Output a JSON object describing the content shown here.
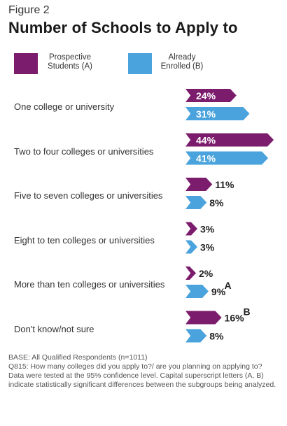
{
  "figure_label": "Figure 2",
  "title": "Number of Schools to Apply to",
  "legend": {
    "a": {
      "line1": "Prospective",
      "line2": "Students (A)",
      "color": "#7b1c6c"
    },
    "b": {
      "line1": "Already",
      "line2": "Enrolled (B)",
      "color": "#4aa3dc"
    }
  },
  "notes": [
    "BASE: All Qualified Respondents (n=1011)",
    "Q815: How many colleges did you apply to?/ are you planning on applying to?",
    "Data were tested at the 95% confidence level. Capital superscript letters (A, B) indicate statistically significant differences between the subgroups being analyzed."
  ],
  "chart_data": {
    "type": "bar",
    "orientation": "horizontal",
    "categories": [
      "One college or university",
      "Two to four colleges or universities",
      "Five to seven colleges or universities",
      "Eight to ten colleges or universities",
      "More than ten colleges or universities",
      "Don't know/not sure"
    ],
    "series": [
      {
        "name": "Prospective Students (A)",
        "color": "#7b1c6c",
        "values": [
          24,
          44,
          11,
          3,
          2,
          16
        ],
        "labels": [
          "24%",
          "44%",
          "11%",
          "3%",
          "2%",
          "16%"
        ],
        "sig": [
          "",
          "",
          "",
          "",
          "",
          "B"
        ]
      },
      {
        "name": "Already Enrolled (B)",
        "color": "#4aa3dc",
        "values": [
          31,
          41,
          8,
          3,
          9,
          8
        ],
        "labels": [
          "31%",
          "41%",
          "8%",
          "3%",
          "9%",
          "8%"
        ],
        "sig": [
          "",
          "",
          "",
          "",
          "A",
          ""
        ]
      }
    ],
    "xlim": [
      0,
      44
    ],
    "grid": false,
    "legend_position": "top"
  }
}
